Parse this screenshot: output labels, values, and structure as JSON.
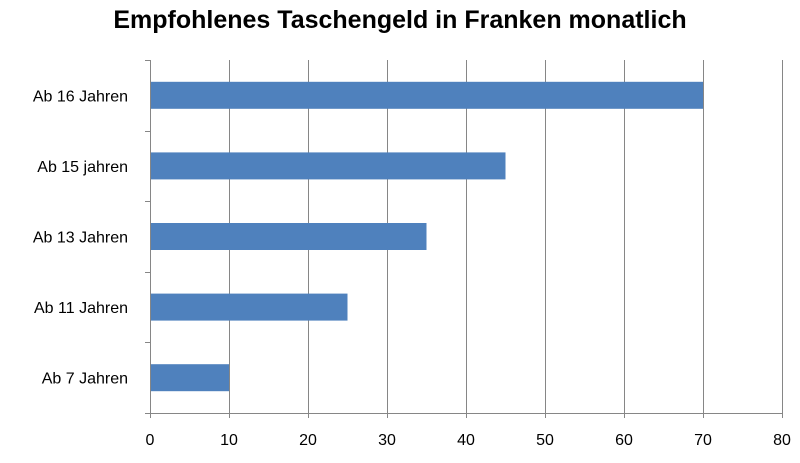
{
  "chart_data": {
    "type": "bar",
    "orientation": "horizontal",
    "title": "Empfohlenes Taschengeld in Franken monatlich",
    "categories": [
      "Ab 16 Jahren",
      "Ab 15 jahren",
      "Ab 13 Jahren",
      "Ab 11 Jahren",
      "Ab 7 Jahren"
    ],
    "values": [
      70,
      45,
      35,
      25,
      10
    ],
    "xlim": [
      0,
      80
    ],
    "xticks": [
      0,
      10,
      20,
      30,
      40,
      50,
      60,
      70,
      80
    ],
    "grid": true,
    "legend": "none",
    "bar_color": "#4F81BD",
    "grid_color": "#868686"
  }
}
